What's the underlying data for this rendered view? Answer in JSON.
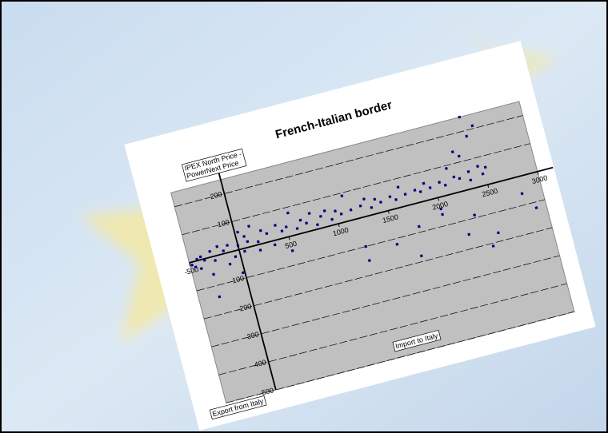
{
  "chart_data": {
    "type": "scatter",
    "title": "French-Italian border",
    "y_label": [
      "IPEX North Price -",
      "PowerNext Price"
    ],
    "annotations": [
      "Import to Italy",
      "Export from Italy"
    ],
    "color": "#000080",
    "plot_background": "#c0c0c0",
    "grid": true,
    "xlim": [
      -500,
      3000
    ],
    "ylim": [
      -500,
      250
    ],
    "xticks": [
      -500,
      500,
      1000,
      1500,
      2000,
      2500,
      3000
    ],
    "yticks": [
      200,
      100,
      -100,
      -200,
      -300,
      -400,
      -500
    ],
    "x": [
      -480,
      -450,
      -420,
      -400,
      -380,
      -350,
      -300,
      -280,
      -250,
      -200,
      -150,
      -120,
      -100,
      -50,
      -20,
      0,
      30,
      50,
      80,
      100,
      150,
      200,
      250,
      300,
      350,
      400,
      450,
      500,
      550,
      600,
      650,
      700,
      750,
      800,
      850,
      900,
      950,
      1000,
      1050,
      1100,
      1150,
      1200,
      1250,
      1300,
      1350,
      1400,
      1450,
      1500,
      1550,
      1600,
      1650,
      1700,
      1750,
      1800,
      1850,
      1900,
      1950,
      2000,
      2050,
      2100,
      2150,
      2200,
      2250,
      2300,
      2350,
      2400,
      2420,
      2450,
      2480,
      2500,
      2520,
      2300,
      2350,
      2480,
      1700,
      2000,
      2200,
      1200,
      500,
      2400,
      2800,
      2900,
      -300,
      200,
      2250
    ],
    "y": [
      -10,
      -20,
      5,
      -30,
      10,
      -5,
      -60,
      20,
      -15,
      30,
      10,
      -40,
      25,
      -20,
      -80,
      15,
      60,
      -10,
      40,
      20,
      70,
      10,
      45,
      30,
      -15,
      50,
      25,
      35,
      80,
      20,
      45,
      30,
      60,
      15,
      40,
      55,
      20,
      45,
      30,
      90,
      35,
      -100,
      40,
      60,
      25,
      50,
      35,
      -120,
      45,
      30,
      70,
      40,
      -80,
      45,
      35,
      60,
      40,
      -60,
      50,
      35,
      90,
      -150,
      45,
      120,
      60,
      250,
      180,
      70,
      40,
      210,
      60,
      -90,
      30,
      -170,
      -180,
      -40,
      55,
      -150,
      -50,
      -210,
      -60,
      -120,
      -140,
      -20,
      140
    ]
  }
}
